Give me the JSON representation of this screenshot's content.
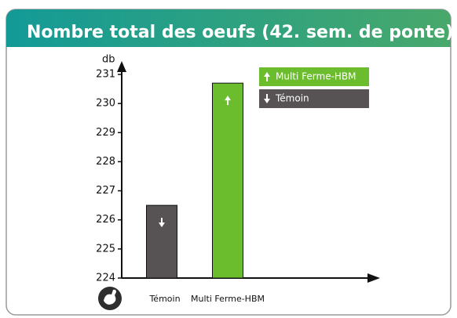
{
  "chart_data": {
    "type": "bar",
    "title": "Nombre total des oeufs (42. sem. de ponte)",
    "y_label": "db",
    "categories": [
      "Témoin",
      "Multi Ferme-HBM"
    ],
    "values": [
      226.5,
      230.7
    ],
    "colors": [
      "#575354",
      "#6cbd2d"
    ],
    "ylim": [
      224,
      231
    ],
    "yticks": [
      224,
      225,
      226,
      227,
      228,
      229,
      230,
      231
    ],
    "legend": "top-right"
  }
}
